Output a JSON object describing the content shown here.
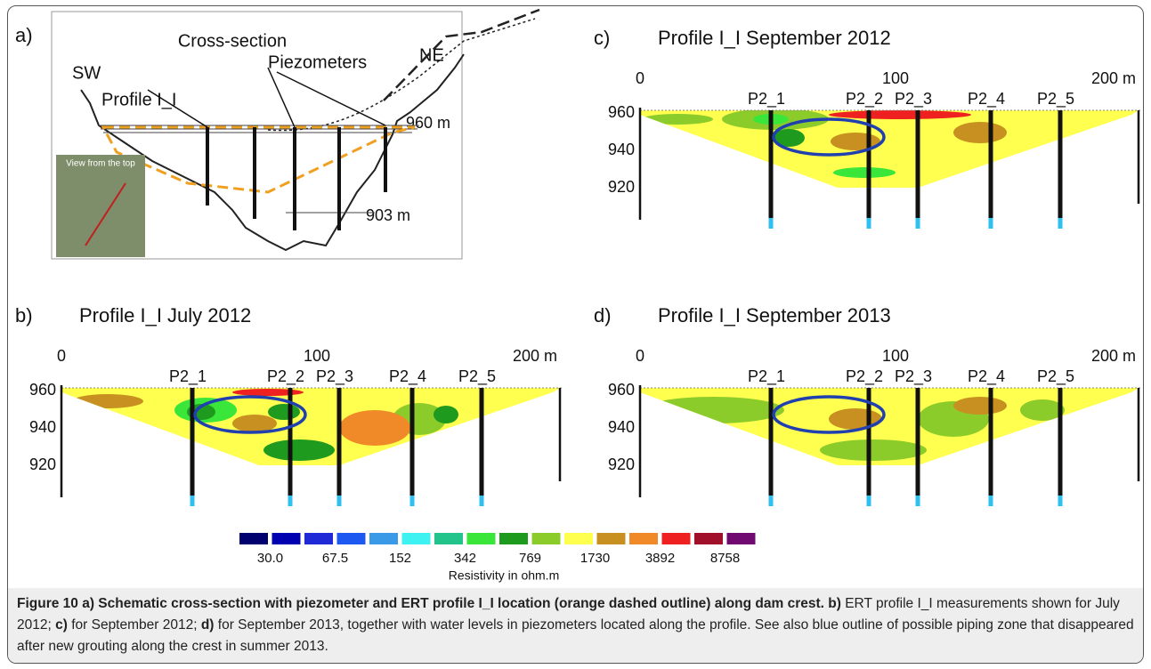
{
  "panel_a": {
    "label": "a)",
    "title": "Cross-section",
    "sw": "SW",
    "ne": "NE",
    "profile": "Profile I_I",
    "piezometers": "Piezometers",
    "crest": "960 m",
    "bottom": "903 m",
    "inset": "View from the top"
  },
  "profiles": [
    {
      "label": "b)",
      "title": "Profile I_I July 2012",
      "x_labels": [
        "0",
        "100",
        "200 m"
      ],
      "depth_labels": [
        "960",
        "940",
        "920"
      ],
      "piezometers": [
        "P2_1",
        "P2_2",
        "P2_3",
        "P2_4",
        "P2_5"
      ]
    },
    {
      "label": "c)",
      "title": "Profile I_I September 2012",
      "x_labels": [
        "0",
        "100",
        "200 m"
      ],
      "depth_labels": [
        "960",
        "940",
        "920"
      ],
      "piezometers": [
        "P2_1",
        "P2_2",
        "P2_3",
        "P2_4",
        "P2_5"
      ]
    },
    {
      "label": "d)",
      "title": "Profile I_I September 2013",
      "x_labels": [
        "0",
        "100",
        "200 m"
      ],
      "depth_labels": [
        "960",
        "940",
        "920"
      ],
      "piezometers": [
        "P2_1",
        "P2_2",
        "P2_3",
        "P2_4",
        "P2_5"
      ]
    }
  ],
  "colorbar": {
    "colors": [
      "#00006e",
      "#0000b0",
      "#1f2ad6",
      "#1d58f0",
      "#3a9ae8",
      "#3ff2f2",
      "#22c48c",
      "#3ae63a",
      "#1e9a1e",
      "#8ccc2a",
      "#ffff50",
      "#c89020",
      "#f08a28",
      "#ee2020",
      "#a0102a",
      "#700a70"
    ],
    "labels": [
      "30.0",
      "67.5",
      "152",
      "342",
      "769",
      "1730",
      "3892",
      "8758"
    ],
    "title": "Resistivity in ohm.m"
  },
  "caption": [
    {
      "text": "Figure 10 a) Schematic cross-section with piezometer and ERT profile I_I location (orange dashed outline) along dam crest. b)",
      "bold": true
    },
    {
      "text": " ERT profile I_I measurements shown for July 2012; ",
      "bold": false
    },
    {
      "text": "c)",
      "bold": true
    },
    {
      "text": " for September 2012; ",
      "bold": false
    },
    {
      "text": "d)",
      "bold": true
    },
    {
      "text": " for September 2013, together with water levels in piezometers located along the profile. See also blue outline of possible piping zone that disappeared after new grouting along the crest in summer 2013.",
      "bold": false
    }
  ]
}
